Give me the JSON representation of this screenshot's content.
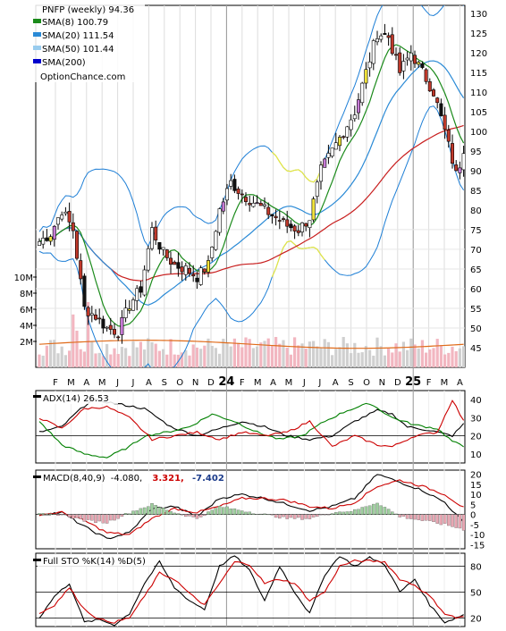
{
  "chart_data": [
    {
      "type": "candlestick",
      "symbol_line": "PNFP (weekly) 94.36",
      "legend": [
        {
          "label": "SMA(8) 100.79",
          "color": "#1a8a1a"
        },
        {
          "label": "SMA(20) 111.54",
          "color": "#2a8ad6"
        },
        {
          "label": "SMA(50) 101.44",
          "color": "#99ccee"
        },
        {
          "label": "SMA(200)",
          "color": "#0000cc"
        }
      ],
      "watermark": "OptionChance.com",
      "y_ticks": [
        130,
        125,
        120,
        115,
        110,
        105,
        100,
        95,
        90,
        85,
        80,
        75,
        70,
        65,
        60,
        55,
        50,
        45
      ],
      "ylim": [
        40,
        132
      ],
      "volume_ticks": [
        "10M",
        "8M",
        "6M",
        "4M",
        "2M"
      ],
      "x_ticks": [
        "F",
        "M",
        "A",
        "M",
        "J",
        "J",
        "A",
        "S",
        "O",
        "N",
        "D",
        "24",
        "F",
        "M",
        "A",
        "M",
        "J",
        "J",
        "A",
        "S",
        "O",
        "N",
        "D",
        "25",
        "F",
        "M",
        "A"
      ],
      "close_anchors": [
        [
          0,
          72
        ],
        [
          3,
          74
        ],
        [
          6,
          80
        ],
        [
          9,
          75
        ],
        [
          12,
          55
        ],
        [
          15,
          53
        ],
        [
          18,
          50
        ],
        [
          21,
          49
        ],
        [
          24,
          56
        ],
        [
          27,
          60
        ],
        [
          30,
          75
        ],
        [
          33,
          69
        ],
        [
          36,
          66
        ],
        [
          39,
          65
        ],
        [
          42,
          63
        ],
        [
          45,
          66
        ],
        [
          48,
          80
        ],
        [
          51,
          87
        ],
        [
          54,
          84
        ],
        [
          57,
          82
        ],
        [
          60,
          80
        ],
        [
          63,
          78
        ],
        [
          66,
          76
        ],
        [
          69,
          75
        ],
        [
          72,
          78
        ],
        [
          75,
          90
        ],
        [
          78,
          95
        ],
        [
          81,
          100
        ],
        [
          84,
          105
        ],
        [
          87,
          115
        ],
        [
          90,
          125
        ],
        [
          93,
          124
        ],
        [
          96,
          115
        ],
        [
          99,
          120
        ],
        [
          102,
          115
        ],
        [
          105,
          110
        ],
        [
          108,
          100
        ],
        [
          111,
          89
        ],
        [
          113,
          94.36
        ]
      ]
    },
    {
      "type": "line",
      "indicator": "ADX(14) 26.53",
      "y_ticks": [
        40,
        30,
        20,
        10
      ],
      "ylim": [
        5,
        45
      ],
      "series": [
        {
          "name": "ADX",
          "color": "#000000",
          "anchors": [
            [
              0,
              22
            ],
            [
              6,
              25
            ],
            [
              10,
              33
            ],
            [
              14,
              40
            ],
            [
              20,
              38
            ],
            [
              28,
              35
            ],
            [
              35,
              25
            ],
            [
              42,
              20
            ],
            [
              48,
              24
            ],
            [
              54,
              28
            ],
            [
              60,
              25
            ],
            [
              66,
              20
            ],
            [
              72,
              18
            ],
            [
              78,
              20
            ],
            [
              84,
              28
            ],
            [
              90,
              34
            ],
            [
              94,
              32
            ],
            [
              98,
              25
            ],
            [
              104,
              23
            ],
            [
              110,
              20
            ],
            [
              113,
              26.53
            ]
          ]
        },
        {
          "name": "+DI",
          "color": "#008000",
          "anchors": [
            [
              0,
              28
            ],
            [
              6,
              15
            ],
            [
              12,
              10
            ],
            [
              18,
              8
            ],
            [
              24,
              14
            ],
            [
              28,
              20
            ],
            [
              34,
              22
            ],
            [
              40,
              25
            ],
            [
              46,
              32
            ],
            [
              52,
              28
            ],
            [
              58,
              22
            ],
            [
              64,
              18
            ],
            [
              70,
              20
            ],
            [
              76,
              28
            ],
            [
              82,
              34
            ],
            [
              88,
              38
            ],
            [
              94,
              30
            ],
            [
              100,
              26
            ],
            [
              106,
              24
            ],
            [
              110,
              17
            ],
            [
              113,
              14
            ]
          ]
        },
        {
          "name": "-DI",
          "color": "#cc0000",
          "anchors": [
            [
              0,
              30
            ],
            [
              6,
              24
            ],
            [
              12,
              35
            ],
            [
              18,
              36
            ],
            [
              24,
              30
            ],
            [
              30,
              18
            ],
            [
              36,
              20
            ],
            [
              42,
              22
            ],
            [
              48,
              18
            ],
            [
              54,
              22
            ],
            [
              60,
              20
            ],
            [
              66,
              22
            ],
            [
              72,
              28
            ],
            [
              78,
              14
            ],
            [
              84,
              20
            ],
            [
              90,
              15
            ],
            [
              94,
              14
            ],
            [
              100,
              20
            ],
            [
              106,
              22
            ],
            [
              110,
              40
            ],
            [
              113,
              28
            ]
          ]
        }
      ]
    },
    {
      "type": "line",
      "indicator": "MACD(8,40,9)",
      "macd_value": "-4.080,",
      "signal_value": "3.321,",
      "hist_value": "-7.402",
      "y_ticks": [
        20,
        15,
        10,
        5,
        0,
        -5,
        -10,
        -15
      ],
      "ylim": [
        -17,
        22
      ],
      "series": [
        {
          "name": "MACD",
          "color": "#000000",
          "anchors": [
            [
              0,
              0
            ],
            [
              6,
              1
            ],
            [
              12,
              -6
            ],
            [
              18,
              -12
            ],
            [
              24,
              -9
            ],
            [
              30,
              3
            ],
            [
              36,
              4
            ],
            [
              42,
              -1
            ],
            [
              48,
              8
            ],
            [
              54,
              10
            ],
            [
              60,
              8
            ],
            [
              66,
              5
            ],
            [
              72,
              2
            ],
            [
              78,
              4
            ],
            [
              84,
              8
            ],
            [
              90,
              20
            ],
            [
              96,
              16
            ],
            [
              102,
              12
            ],
            [
              108,
              6
            ],
            [
              113,
              -4.08
            ]
          ]
        },
        {
          "name": "Signal",
          "color": "#cc0000",
          "anchors": [
            [
              0,
              0
            ],
            [
              6,
              1
            ],
            [
              12,
              -3
            ],
            [
              18,
              -9
            ],
            [
              24,
              -10
            ],
            [
              30,
              -2
            ],
            [
              36,
              3
            ],
            [
              42,
              1
            ],
            [
              48,
              4
            ],
            [
              54,
              8
            ],
            [
              60,
              8
            ],
            [
              66,
              7
            ],
            [
              72,
              4
            ],
            [
              78,
              3
            ],
            [
              84,
              6
            ],
            [
              90,
              14
            ],
            [
              96,
              17
            ],
            [
              102,
              14
            ],
            [
              108,
              10
            ],
            [
              113,
              3.321
            ]
          ]
        },
        {
          "name": "Histogram",
          "color": "#9ecf9e",
          "anchors": [
            [
              0,
              0
            ],
            [
              6,
              0
            ],
            [
              12,
              -3
            ],
            [
              18,
              -4
            ],
            [
              24,
              1
            ],
            [
              30,
              5
            ],
            [
              36,
              1
            ],
            [
              42,
              -2
            ],
            [
              48,
              4
            ],
            [
              54,
              2
            ],
            [
              60,
              0
            ],
            [
              66,
              -2
            ],
            [
              72,
              -2
            ],
            [
              78,
              1
            ],
            [
              84,
              2
            ],
            [
              90,
              6
            ],
            [
              96,
              -1
            ],
            [
              102,
              -3
            ],
            [
              108,
              -5
            ],
            [
              113,
              -7.402
            ]
          ]
        }
      ]
    },
    {
      "type": "line",
      "indicator": "Full STO %K(14) %D(5)",
      "y_ticks": [
        80,
        50,
        20
      ],
      "ylim": [
        10,
        95
      ],
      "series": [
        {
          "name": "%K",
          "color": "#000000",
          "anchors": [
            [
              0,
              20
            ],
            [
              4,
              45
            ],
            [
              8,
              60
            ],
            [
              12,
              15
            ],
            [
              16,
              18
            ],
            [
              20,
              12
            ],
            [
              24,
              25
            ],
            [
              28,
              60
            ],
            [
              32,
              85
            ],
            [
              36,
              55
            ],
            [
              40,
              40
            ],
            [
              44,
              30
            ],
            [
              48,
              80
            ],
            [
              52,
              92
            ],
            [
              56,
              75
            ],
            [
              60,
              40
            ],
            [
              64,
              80
            ],
            [
              68,
              50
            ],
            [
              72,
              25
            ],
            [
              76,
              70
            ],
            [
              80,
              92
            ],
            [
              84,
              80
            ],
            [
              88,
              90
            ],
            [
              92,
              82
            ],
            [
              96,
              50
            ],
            [
              100,
              65
            ],
            [
              104,
              35
            ],
            [
              108,
              15
            ],
            [
              111,
              20
            ],
            [
              113,
              24
            ]
          ]
        },
        {
          "name": "%D",
          "color": "#cc0000",
          "anchors": [
            [
              0,
              25
            ],
            [
              4,
              35
            ],
            [
              8,
              55
            ],
            [
              12,
              30
            ],
            [
              16,
              18
            ],
            [
              20,
              15
            ],
            [
              24,
              20
            ],
            [
              28,
              45
            ],
            [
              32,
              72
            ],
            [
              36,
              65
            ],
            [
              40,
              48
            ],
            [
              44,
              35
            ],
            [
              48,
              60
            ],
            [
              52,
              85
            ],
            [
              56,
              82
            ],
            [
              60,
              60
            ],
            [
              64,
              65
            ],
            [
              68,
              60
            ],
            [
              72,
              40
            ],
            [
              76,
              50
            ],
            [
              80,
              80
            ],
            [
              84,
              86
            ],
            [
              88,
              86
            ],
            [
              92,
              85
            ],
            [
              96,
              65
            ],
            [
              100,
              58
            ],
            [
              104,
              45
            ],
            [
              108,
              25
            ],
            [
              111,
              20
            ],
            [
              113,
              22
            ]
          ]
        }
      ]
    }
  ]
}
